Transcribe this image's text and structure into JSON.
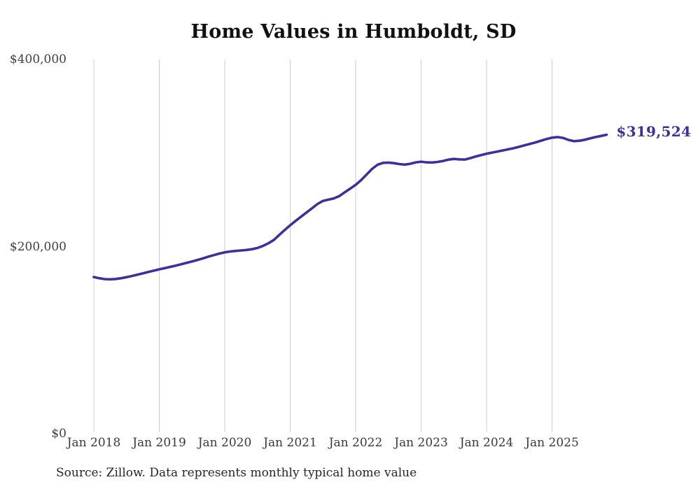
{
  "page": {
    "background_color": "#ffffff",
    "source_note": "Source: Zillow. Data represents monthly typical home value"
  },
  "chart_data": {
    "type": "line",
    "title": "Home Values in Humboldt, SD",
    "xlabel": "",
    "ylabel": "",
    "ylim": [
      0,
      400000
    ],
    "grid": "vertical-only",
    "gridline_color": "#cccccc",
    "line_color": "#3a329b",
    "annotation_color": "#3a329b",
    "tick_label_color": "#3f3f3f",
    "frequency": "monthly",
    "x_start_month": "2018-01",
    "x_tick_labels": [
      "Jan 2018",
      "Jan 2019",
      "Jan 2020",
      "Jan 2021",
      "Jan 2022",
      "Jan 2023",
      "Jan 2024",
      "Jan 2025"
    ],
    "y_ticks": [
      {
        "label": "$0",
        "value": 0
      },
      {
        "label": "$200,000",
        "value": 200000
      },
      {
        "label": "$400,000",
        "value": 400000
      }
    ],
    "end_label": "$319,524",
    "end_value": 319524,
    "series": [
      {
        "name": "Typical home value",
        "values": [
          167500,
          166200,
          165200,
          165000,
          165400,
          166200,
          167300,
          168600,
          170000,
          171400,
          172900,
          174300,
          175700,
          177000,
          178300,
          179700,
          181100,
          182600,
          184100,
          185700,
          187400,
          189200,
          190900,
          192500,
          193900,
          194800,
          195400,
          195900,
          196400,
          197200,
          198600,
          200700,
          203500,
          207000,
          212500,
          217800,
          222800,
          227500,
          232000,
          236500,
          241000,
          245500,
          248800,
          250200,
          251500,
          254000,
          258000,
          262000,
          266000,
          271000,
          277000,
          283000,
          287500,
          289500,
          289800,
          289200,
          288200,
          287600,
          288500,
          290000,
          290800,
          290000,
          289900,
          290500,
          291500,
          292900,
          293700,
          293200,
          293000,
          294500,
          296300,
          297800,
          299200,
          300500,
          301600,
          302800,
          304000,
          305300,
          306800,
          308300,
          309800,
          311400,
          313200,
          315000,
          316400,
          317100,
          316200,
          314000,
          312700,
          313100,
          314200,
          315700,
          317100,
          318300,
          319524
        ]
      }
    ]
  }
}
